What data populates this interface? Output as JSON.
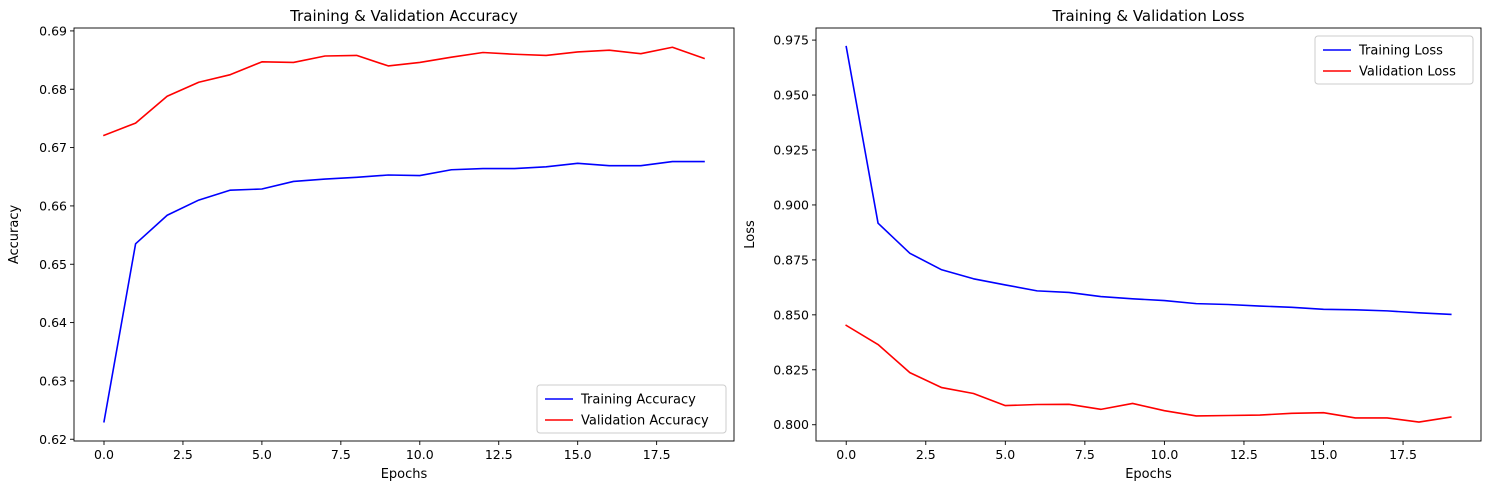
{
  "chart_data": [
    {
      "type": "line",
      "title": "Training & Validation Accuracy",
      "xlabel": "Epochs",
      "ylabel": "Accuracy",
      "xlim": [
        -0.95,
        19.95
      ],
      "ylim": [
        0.6197,
        0.6905
      ],
      "xticks": [
        0.0,
        2.5,
        5.0,
        7.5,
        10.0,
        12.5,
        15.0,
        17.5
      ],
      "xtick_labels": [
        "0.0",
        "2.5",
        "5.0",
        "7.5",
        "10.0",
        "12.5",
        "15.0",
        "17.5"
      ],
      "yticks": [
        0.62,
        0.63,
        0.64,
        0.65,
        0.66,
        0.67,
        0.68,
        0.69
      ],
      "ytick_labels": [
        "0.62",
        "0.63",
        "0.64",
        "0.65",
        "0.66",
        "0.67",
        "0.68",
        "0.69"
      ],
      "grid": false,
      "legend_position": "lower-right",
      "x": [
        0,
        1,
        2,
        3,
        4,
        5,
        6,
        7,
        8,
        9,
        10,
        11,
        12,
        13,
        14,
        15,
        16,
        17,
        18,
        19
      ],
      "series": [
        {
          "name": "Training Accuracy",
          "color": "#0000ff",
          "values": [
            0.623,
            0.6535,
            0.6584,
            0.661,
            0.6627,
            0.6629,
            0.6642,
            0.6646,
            0.6649,
            0.6653,
            0.6652,
            0.6662,
            0.6664,
            0.6664,
            0.6667,
            0.6673,
            0.6669,
            0.6669,
            0.6676,
            0.6676
          ]
        },
        {
          "name": "Validation Accuracy",
          "color": "#ff0000",
          "values": [
            0.6721,
            0.6742,
            0.6788,
            0.6812,
            0.6825,
            0.6847,
            0.6846,
            0.6857,
            0.6858,
            0.684,
            0.6846,
            0.6855,
            0.6863,
            0.686,
            0.6858,
            0.6864,
            0.6867,
            0.6861,
            0.6872,
            0.6853
          ]
        }
      ]
    },
    {
      "type": "line",
      "title": "Training & Validation Loss",
      "xlabel": "Epochs",
      "ylabel": "Loss",
      "xlim": [
        -0.95,
        19.95
      ],
      "ylim": [
        0.7926,
        0.9805
      ],
      "xticks": [
        0.0,
        2.5,
        5.0,
        7.5,
        10.0,
        12.5,
        15.0,
        17.5
      ],
      "xtick_labels": [
        "0.0",
        "2.5",
        "5.0",
        "7.5",
        "10.0",
        "12.5",
        "15.0",
        "17.5"
      ],
      "yticks": [
        0.8,
        0.825,
        0.85,
        0.875,
        0.9,
        0.925,
        0.95,
        0.975
      ],
      "ytick_labels": [
        "0.800",
        "0.825",
        "0.850",
        "0.875",
        "0.900",
        "0.925",
        "0.950",
        "0.975"
      ],
      "grid": false,
      "legend_position": "top-right",
      "x": [
        0,
        1,
        2,
        3,
        4,
        5,
        6,
        7,
        8,
        9,
        10,
        11,
        12,
        13,
        14,
        15,
        16,
        17,
        18,
        19
      ],
      "series": [
        {
          "name": "Training Loss",
          "color": "#0000ff",
          "values": [
            0.972,
            0.8917,
            0.878,
            0.8705,
            0.8664,
            0.8636,
            0.8609,
            0.8602,
            0.8583,
            0.8573,
            0.8565,
            0.8551,
            0.8547,
            0.854,
            0.8534,
            0.8525,
            0.8523,
            0.8518,
            0.8509,
            0.8502
          ]
        },
        {
          "name": "Validation Loss",
          "color": "#ff0000",
          "values": [
            0.8452,
            0.8365,
            0.8237,
            0.8169,
            0.8142,
            0.8087,
            0.8092,
            0.8093,
            0.807,
            0.8097,
            0.8064,
            0.804,
            0.8042,
            0.8044,
            0.8052,
            0.8055,
            0.8031,
            0.8031,
            0.8012,
            0.8035
          ]
        }
      ]
    }
  ]
}
